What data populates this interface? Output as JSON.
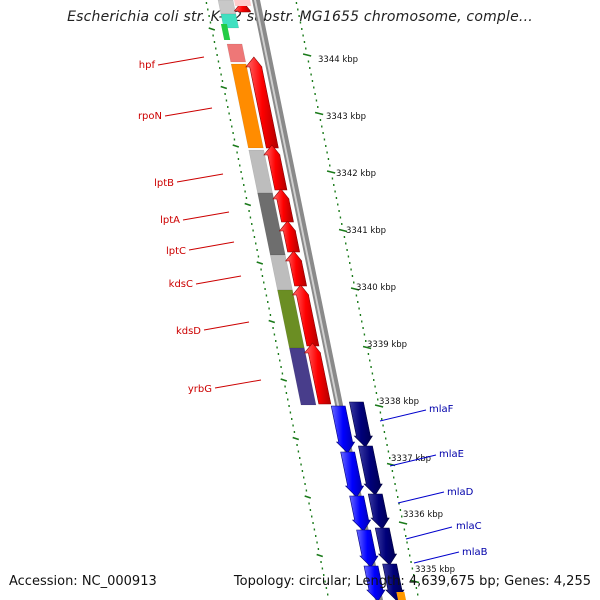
{
  "title": "Escherichia coli str. K-12 substr. MG1655 chromosome, comple...",
  "footer": {
    "accession": "Accession: NC_000913",
    "summary": "Topology: circular; Length: 4,639,675 bp; Genes: 4,255"
  },
  "colors": {
    "background": "#ffffff",
    "tick": "#1a7a1a",
    "label_red": "#cc0000",
    "label_blue": "#0000aa",
    "backbone": "#7a7a7a"
  },
  "scale_labels": [
    "3344 kbp",
    "3343 kbp",
    "3342 kbp",
    "3341 kbp",
    "3340 kbp",
    "3339 kbp",
    "3338 kbp",
    "3337 kbp",
    "3336 kbp",
    "3335 kbp"
  ],
  "genes_red": [
    {
      "name": "hpf",
      "color": "#ee7777"
    },
    {
      "name": "rpoN",
      "color": "#ff8c00"
    },
    {
      "name": "lptB",
      "color": "#bdbdbd"
    },
    {
      "name": "lptA",
      "color": "#6e6e6e"
    },
    {
      "name": "lptC",
      "color": "#bdbdbd"
    },
    {
      "name": "kdsC",
      "color": "#bdbdbd"
    },
    {
      "name": "kdsD",
      "color": "#6b8e23"
    },
    {
      "name": "yrbG",
      "color": "#483d8b"
    }
  ],
  "genes_blue": [
    "mlaF",
    "mlaE",
    "mlaD",
    "mlaC",
    "mlaB"
  ]
}
